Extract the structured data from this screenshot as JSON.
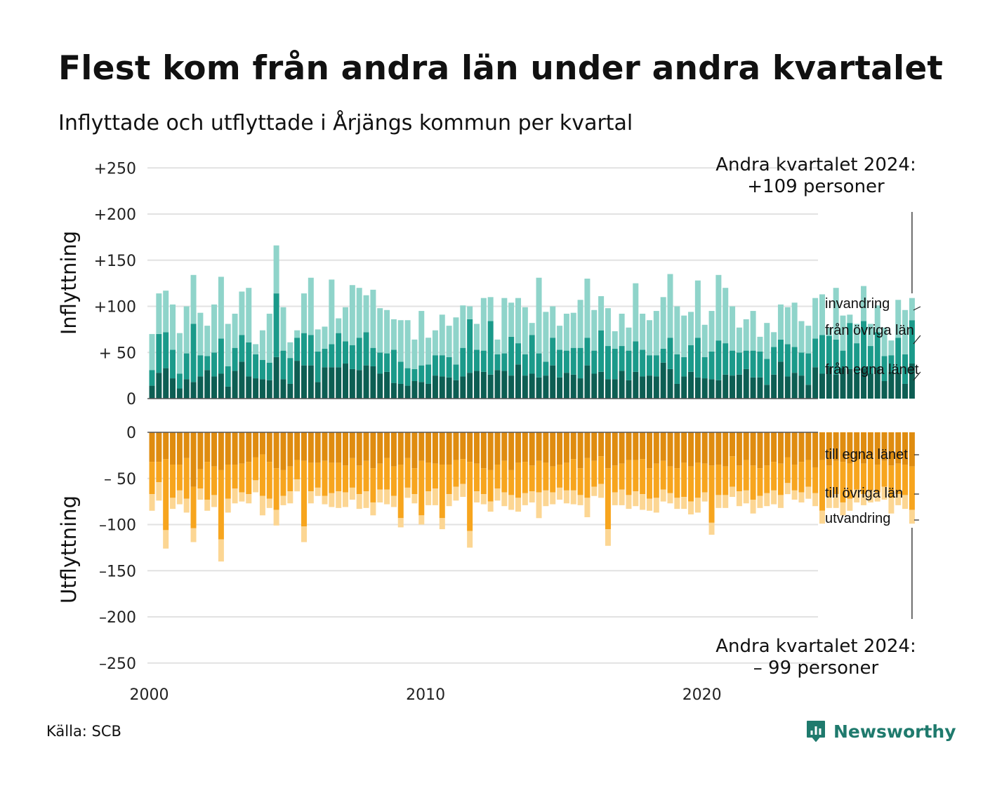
{
  "title": "Flest kom från andra län under andra kvartalet",
  "subtitle": "Inflyttade och utflyttade i Årjängs kommun per kvartal",
  "source": "Källa: SCB",
  "brand": "Newsworthy",
  "colors": {
    "in_own": "#0d5e53",
    "in_other": "#1b9a8a",
    "in_imm": "#8fd4ca",
    "out_own": "#df8c10",
    "out_other": "#f7a51e",
    "out_emig": "#fcd693",
    "grid": "#e2e2e2",
    "brand": "#1f7a6d"
  },
  "chart_data": [
    {
      "type": "bar",
      "stacked": true,
      "ylabel": "Inflyttning",
      "ylim": [
        0,
        250
      ],
      "yticks": [
        0,
        50,
        100,
        150,
        200,
        250
      ],
      "ytick_labels": [
        "0",
        "+ 50",
        "+100",
        "+150",
        "+200",
        "+250"
      ],
      "xtick_labels": [
        "2000",
        "2010",
        "2020"
      ],
      "x_start": "2000 Q1",
      "annotation": [
        "Andra kvartalet 2024:",
        "+109 personer"
      ],
      "series": [
        {
          "name": "från egna länet",
          "color": "#0d5e53",
          "values": [
            14,
            28,
            33,
            22,
            11,
            21,
            18,
            24,
            31,
            24,
            27,
            13,
            30,
            40,
            24,
            22,
            21,
            20,
            45,
            21,
            16,
            41,
            36,
            36,
            18,
            34,
            34,
            34,
            38,
            32,
            31,
            36,
            35,
            27,
            29,
            17,
            16,
            14,
            19,
            18,
            16,
            25,
            24,
            23,
            20,
            24,
            28,
            30,
            29,
            26,
            31,
            30,
            25,
            37,
            25,
            27,
            23,
            25,
            36,
            23,
            28,
            26,
            22,
            36,
            27,
            29,
            21,
            21,
            30,
            20,
            29,
            24,
            25,
            24,
            39,
            32,
            16,
            24,
            29,
            23,
            22,
            21,
            20,
            26,
            25,
            26,
            32,
            23,
            23,
            15,
            26,
            40,
            24,
            28,
            25,
            15,
            34,
            27,
            34,
            26,
            33,
            32,
            27,
            33,
            27,
            34,
            19,
            29,
            28,
            16,
            38
          ]
        },
        {
          "name": "från övriga län",
          "color": "#1b9a8a",
          "values": [
            17,
            42,
            39,
            31,
            16,
            28,
            63,
            23,
            15,
            26,
            38,
            22,
            25,
            29,
            37,
            26,
            21,
            19,
            69,
            31,
            28,
            25,
            35,
            33,
            33,
            20,
            25,
            37,
            24,
            26,
            35,
            36,
            20,
            23,
            20,
            36,
            24,
            19,
            13,
            18,
            21,
            22,
            23,
            22,
            17,
            31,
            58,
            23,
            23,
            58,
            17,
            19,
            42,
            23,
            23,
            42,
            26,
            15,
            30,
            30,
            24,
            29,
            33,
            30,
            25,
            45,
            36,
            33,
            27,
            32,
            33,
            29,
            22,
            23,
            15,
            34,
            32,
            21,
            29,
            43,
            23,
            30,
            43,
            34,
            27,
            24,
            20,
            29,
            28,
            28,
            30,
            24,
            35,
            28,
            25,
            34,
            31,
            42,
            34,
            38,
            19,
            50,
            33,
            51,
            30,
            38,
            27,
            18,
            38,
            32,
            47
          ]
        },
        {
          "name": "invandring",
          "color": "#8fd4ca",
          "values": [
            39,
            44,
            45,
            49,
            44,
            51,
            53,
            46,
            33,
            52,
            67,
            46,
            37,
            47,
            59,
            11,
            32,
            53,
            52,
            47,
            17,
            8,
            43,
            62,
            24,
            24,
            70,
            16,
            37,
            65,
            54,
            40,
            63,
            48,
            47,
            33,
            45,
            52,
            32,
            59,
            29,
            27,
            44,
            34,
            51,
            46,
            14,
            28,
            57,
            26,
            16,
            60,
            37,
            49,
            51,
            13,
            82,
            54,
            34,
            26,
            40,
            38,
            52,
            64,
            44,
            37,
            41,
            19,
            35,
            25,
            63,
            39,
            38,
            48,
            56,
            69,
            52,
            45,
            36,
            62,
            35,
            44,
            71,
            60,
            48,
            27,
            34,
            43,
            16,
            39,
            16,
            38,
            40,
            48,
            34,
            30,
            44,
            44,
            9,
            56,
            38,
            9,
            21,
            38,
            24,
            29,
            31,
            16,
            41,
            48,
            24
          ]
        }
      ]
    },
    {
      "type": "bar",
      "stacked": true,
      "ylabel": "Utflyttning",
      "ylim": [
        -250,
        0
      ],
      "yticks": [
        0,
        -50,
        -100,
        -150,
        -200,
        -250
      ],
      "ytick_labels": [
        "0",
        "– 50",
        "–100",
        "–150",
        "–200",
        "–250"
      ],
      "annotation": [
        "Andra kvartalet 2024:",
        "– 99 personer"
      ],
      "series": [
        {
          "name": "till egna länet",
          "color": "#df8c10",
          "values": [
            -32,
            -32,
            -29,
            -35,
            -35,
            -28,
            -59,
            -40,
            -32,
            -37,
            -41,
            -35,
            -35,
            -34,
            -32,
            -27,
            -24,
            -32,
            -39,
            -41,
            -37,
            -30,
            -31,
            -33,
            -33,
            -31,
            -33,
            -33,
            -36,
            -28,
            -36,
            -31,
            -39,
            -34,
            -28,
            -37,
            -35,
            -28,
            -39,
            -31,
            -33,
            -34,
            -35,
            -35,
            -30,
            -29,
            -32,
            -34,
            -39,
            -41,
            -35,
            -31,
            -41,
            -33,
            -32,
            -36,
            -31,
            -33,
            -37,
            -35,
            -33,
            -29,
            -39,
            -28,
            -31,
            -26,
            -39,
            -36,
            -34,
            -30,
            -30,
            -29,
            -39,
            -34,
            -31,
            -37,
            -39,
            -33,
            -37,
            -33,
            -34,
            -36,
            -35,
            -37,
            -26,
            -36,
            -30,
            -36,
            -39,
            -36,
            -32,
            -34,
            -27,
            -35,
            -32,
            -30,
            -38,
            -30,
            -36,
            -31,
            -32,
            -34,
            -30,
            -34,
            -25,
            -35,
            -31,
            -36,
            -34,
            -35,
            -37
          ]
        },
        {
          "name": "till övriga län",
          "color": "#f7a51e",
          "values": [
            -35,
            -22,
            -77,
            -36,
            -28,
            -44,
            -45,
            -21,
            -41,
            -31,
            -75,
            -37,
            -26,
            -31,
            -35,
            -25,
            -45,
            -40,
            -45,
            -28,
            -27,
            -21,
            -71,
            -31,
            -27,
            -38,
            -33,
            -31,
            -29,
            -32,
            -31,
            -33,
            -37,
            -28,
            -34,
            -32,
            -58,
            -32,
            -28,
            -59,
            -31,
            -27,
            -58,
            -32,
            -29,
            -27,
            -75,
            -30,
            -28,
            -34,
            -26,
            -34,
            -27,
            -38,
            -34,
            -28,
            -34,
            -30,
            -28,
            -25,
            -30,
            -34,
            -29,
            -43,
            -28,
            -30,
            -66,
            -29,
            -28,
            -38,
            -34,
            -38,
            -33,
            -37,
            -31,
            -29,
            -32,
            -37,
            -38,
            -38,
            -31,
            -62,
            -33,
            -31,
            -33,
            -28,
            -33,
            -37,
            -30,
            -30,
            -31,
            -34,
            -28,
            -28,
            -33,
            -29,
            -28,
            -55,
            -34,
            -36,
            -44,
            -38,
            -32,
            -33,
            -38,
            -30,
            -28,
            -35,
            -33,
            -33,
            -47
          ]
        },
        {
          "name": "utvandring",
          "color": "#fcd693",
          "values": [
            -18,
            -20,
            -20,
            -12,
            -15,
            -15,
            -15,
            -12,
            -12,
            -13,
            -24,
            -15,
            -16,
            -10,
            -10,
            -13,
            -21,
            -10,
            -17,
            -10,
            -13,
            -13,
            -17,
            -13,
            -9,
            -9,
            -15,
            -18,
            -16,
            -13,
            -16,
            -18,
            -14,
            -14,
            -16,
            -12,
            -10,
            -11,
            -10,
            -10,
            -15,
            -18,
            -12,
            -13,
            -15,
            -14,
            -18,
            -12,
            -11,
            -11,
            -13,
            -15,
            -16,
            -15,
            -13,
            -12,
            -28,
            -17,
            -13,
            -13,
            -14,
            -15,
            -11,
            -21,
            -10,
            -15,
            -18,
            -14,
            -17,
            -15,
            -16,
            -17,
            -13,
            -16,
            -13,
            -11,
            -12,
            -13,
            -14,
            -16,
            -10,
            -13,
            -14,
            -14,
            -11,
            -16,
            -14,
            -15,
            -13,
            -14,
            -15,
            -14,
            -12,
            -10,
            -11,
            -13,
            -14,
            -14,
            -12,
            -15,
            -14,
            -13,
            -14,
            -12,
            -13,
            -10,
            -14,
            -17,
            -12,
            -15,
            -15
          ]
        }
      ]
    }
  ]
}
